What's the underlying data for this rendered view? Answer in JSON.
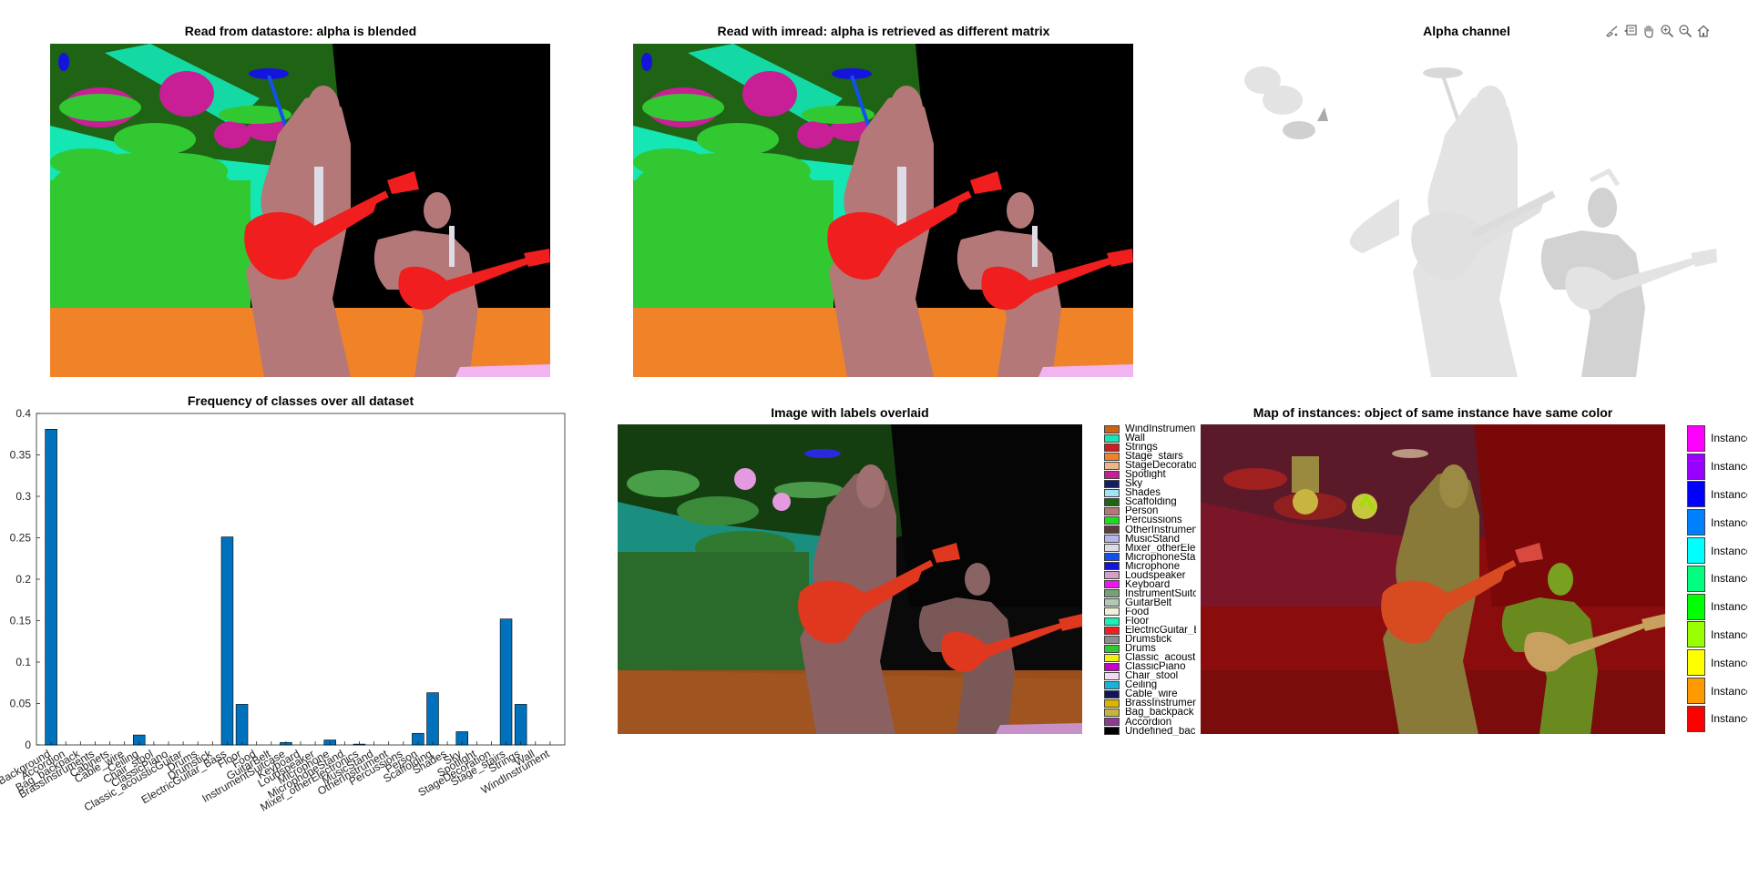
{
  "titles": {
    "blended": "Read from datastore: alpha is blended",
    "imread": "Read with imread: alpha is retrieved as different matrix",
    "alpha": "Alpha channel",
    "frequency": "Frequency of classes over all dataset",
    "overlay": "Image with labels overlaid",
    "instances": "Map of instances: object of same instance have same color"
  },
  "toolbar": {
    "icons": [
      "brush-icon",
      "data-tip-icon",
      "pan-hand-icon",
      "zoom-in-icon",
      "zoom-out-icon",
      "home-icon"
    ]
  },
  "chart_data": {
    "type": "bar",
    "title": "Frequency of classes over all dataset",
    "ylim": [
      0,
      0.4
    ],
    "yticks": [
      "0",
      "0.05",
      "0.1",
      "0.15",
      "0.2",
      "0.25",
      "0.3",
      "0.35",
      "0.4"
    ],
    "color": "#0072BD",
    "categories": [
      "Background",
      "Accordion",
      "Bag_backpack",
      "BrassInstruments",
      "Cabinets",
      "Cable_wire",
      "Ceiling",
      "Chair_stool",
      "ClassicPiano",
      "Classic_acousticGuitar",
      "Drums",
      "Drumstick",
      "ElectricGuitar_Bass",
      "Floor",
      "Food",
      "GuitarBelt",
      "InstrumentSuitcase",
      "Keyboard",
      "Loudspeaker",
      "Microphone",
      "MicrophoneStand",
      "Mixer_otherElectronics",
      "MusicStand",
      "OtherInstrument",
      "Percussions",
      "Person",
      "Scaffolding",
      "Shades",
      "Sky",
      "Spotlight",
      "StageDecoration",
      "Stage_stairs",
      "Strings",
      "Wall",
      "WindInstrument"
    ],
    "tick_labels": [
      "Background",
      "Accordion",
      "Bag_backpack",
      "BrassInstruments",
      "Cabinets",
      "Cable_wire",
      "Ceiling",
      "Chair_stool",
      "ClassicPiano",
      "Classic_acousticGuitar",
      "Drums",
      "Drumstick",
      "ElectricGuitar_Bass",
      "Floor",
      "Food",
      "GuitarBelt",
      "InstrumentSuitcase",
      "Keyboard",
      "Loudspeaker",
      "Microphone",
      "MicrophoneStand",
      "Mixer_otherElectronics",
      "MusicStand",
      "OtherInstrument",
      "Percussions",
      "Person",
      "Scaffolding",
      "Shades",
      "Sky",
      "Spotlight",
      "StageDecoration",
      "Stage_stairs",
      "Strings",
      "Wall",
      "WindInstrument"
    ],
    "values": [
      0.381,
      0,
      0,
      0,
      0,
      0,
      0.012,
      0,
      0,
      0,
      0,
      0,
      0.251,
      0.049,
      0,
      0,
      0.003,
      0,
      0,
      0.006,
      0,
      0.001,
      0,
      0,
      0,
      0.014,
      0.063,
      0,
      0.016,
      0,
      0,
      0.152,
      0.049,
      0,
      0
    ]
  },
  "class_legend": [
    {
      "label": "WindInstrument",
      "color": "#c86414"
    },
    {
      "label": "Wall",
      "color": "#14e6b4"
    },
    {
      "label": "Strings",
      "color": "#c81e1e"
    },
    {
      "label": "Stage_stairs",
      "color": "#f08228"
    },
    {
      "label": "StageDecoration",
      "color": "#f0b48c"
    },
    {
      "label": "Spotlight",
      "color": "#c81e96"
    },
    {
      "label": "Sky",
      "color": "#141e64"
    },
    {
      "label": "Shades",
      "color": "#a0e6f0"
    },
    {
      "label": "Scaffolding",
      "color": "#1e6414"
    },
    {
      "label": "Person",
      "color": "#b47878"
    },
    {
      "label": "Percussions",
      "color": "#1edc1e"
    },
    {
      "label": "OtherInstrument",
      "color": "#5a3c3c"
    },
    {
      "label": "MusicStand",
      "color": "#b4b4f0"
    },
    {
      "label": "Mixer_otherElectronics",
      "color": "#dcdce6"
    },
    {
      "label": "MicrophoneStand",
      "color": "#1450f0"
    },
    {
      "label": "Microphone",
      "color": "#1414dc"
    },
    {
      "label": "Loudspeaker",
      "color": "#d2a0c8"
    },
    {
      "label": "Keyboard",
      "color": "#f014f0"
    },
    {
      "label": "InstrumentSuitcase",
      "color": "#78a078"
    },
    {
      "label": "GuitarBelt",
      "color": "#b4c8b4"
    },
    {
      "label": "Food",
      "color": "#f0f0dc"
    },
    {
      "label": "Floor",
      "color": "#1ef0b4"
    },
    {
      "label": "ElectricGuitar_Bass",
      "color": "#f01e1e"
    },
    {
      "label": "Drumstick",
      "color": "#8c8c8c"
    },
    {
      "label": "Drums",
      "color": "#32c832"
    },
    {
      "label": "Classic_acousticGuitar",
      "color": "#f0f014"
    },
    {
      "label": "ClassicPiano",
      "color": "#c800c8"
    },
    {
      "label": "Chair_stool",
      "color": "#f0dcf0"
    },
    {
      "label": "Ceiling",
      "color": "#14b4dc"
    },
    {
      "label": "Cable_wire",
      "color": "#14145a"
    },
    {
      "label": "BrassInstruments",
      "color": "#dcb400"
    },
    {
      "label": "Bag_backpack",
      "color": "#c8b43c"
    },
    {
      "label": "Accordion",
      "color": "#8c3c8c"
    },
    {
      "label": "Undefined_background",
      "color": "#000000"
    }
  ],
  "instance_legend": [
    {
      "label": "Instance",
      "color": "#ff00ff"
    },
    {
      "label": "Instance",
      "color": "#9900ff"
    },
    {
      "label": "Instance",
      "color": "#0000ff"
    },
    {
      "label": "Instance",
      "color": "#0080ff"
    },
    {
      "label": "Instance",
      "color": "#00ffff"
    },
    {
      "label": "Instance",
      "color": "#00ff80"
    },
    {
      "label": "Instance",
      "color": "#00ff00"
    },
    {
      "label": "Instance",
      "color": "#99ff00"
    },
    {
      "label": "Instance",
      "color": "#ffff00"
    },
    {
      "label": "Instance",
      "color": "#ff9900"
    },
    {
      "label": "Instance",
      "color": "#ff0000"
    }
  ]
}
